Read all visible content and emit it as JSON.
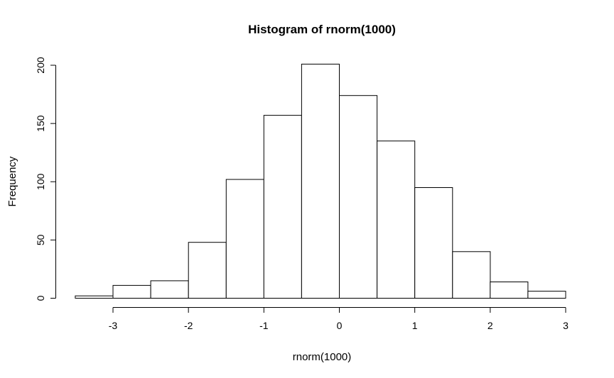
{
  "chart_data": {
    "type": "bar",
    "subtype": "histogram",
    "title": "Histogram of rnorm(1000)",
    "xlabel": "rnorm(1000)",
    "ylabel": "Frequency",
    "breaks": [
      -3.5,
      -3.0,
      -2.5,
      -2.0,
      -1.5,
      -1.0,
      -0.5,
      0.0,
      0.5,
      1.0,
      1.5,
      2.0,
      2.5,
      3.0
    ],
    "counts": [
      2,
      11,
      15,
      48,
      102,
      157,
      201,
      174,
      135,
      95,
      40,
      14,
      6
    ],
    "total_n": 1000,
    "x_ticks": [
      -3,
      -2,
      -1,
      0,
      1,
      2,
      3
    ],
    "y_ticks": [
      0,
      50,
      100,
      150,
      200
    ],
    "xlim": [
      -3,
      3
    ],
    "ylim": [
      0,
      200
    ],
    "grid": false,
    "legend": "none",
    "bar_fill": "#ffffff",
    "bar_stroke": "#000000",
    "axis_color": "#000000",
    "text_color": "#000000",
    "background": "#ffffff"
  }
}
